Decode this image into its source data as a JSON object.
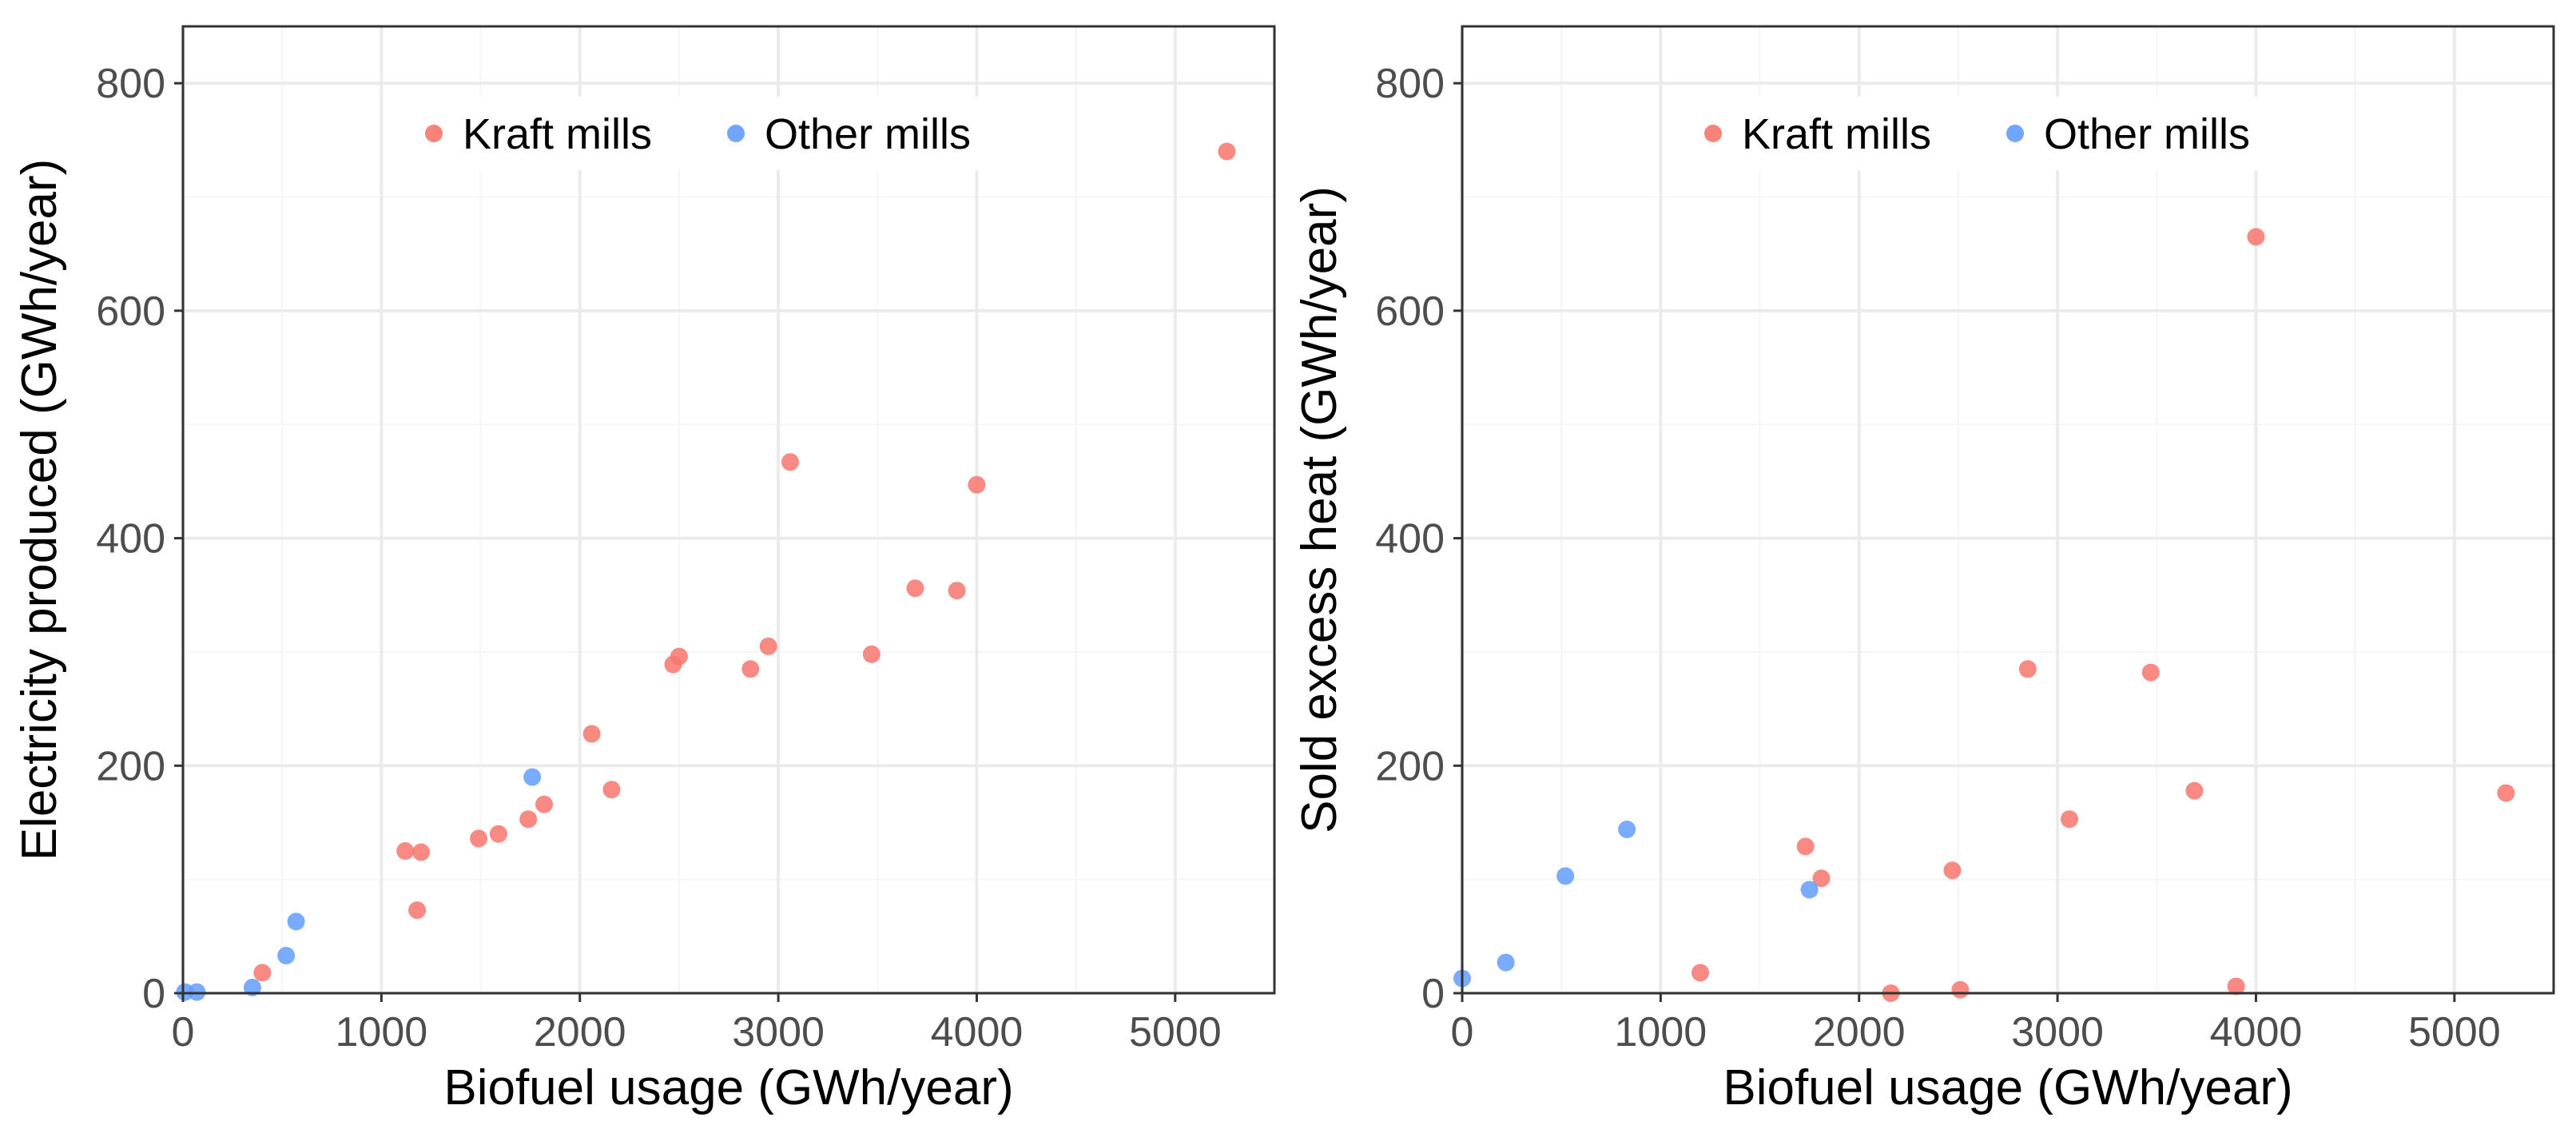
{
  "colors": {
    "kraft": "#F8766D",
    "other": "#619CFF",
    "grid_major": "#EBEBEB",
    "grid_minor": "#F5F5F5",
    "panel_border": "#333333",
    "tick_label": "#4D4D4D",
    "axis_title": "#000000"
  },
  "chart_data": [
    {
      "type": "scatter",
      "xlabel": "Biofuel usage (GWh/year)",
      "ylabel": "Electricity produced (GWh/year)",
      "xlim": [
        0,
        5500
      ],
      "ylim": [
        0,
        850
      ],
      "xticks": [
        0,
        1000,
        2000,
        3000,
        4000,
        5000
      ],
      "yticks": [
        0,
        200,
        400,
        600,
        800
      ],
      "xtick_labels": [
        "0",
        "1000",
        "2000",
        "3000",
        "4000",
        "5000"
      ],
      "ytick_labels": [
        "0",
        "200",
        "400",
        "600",
        "800"
      ],
      "grid": true,
      "legend": {
        "position": "top",
        "entries": [
          "Kraft mills",
          "Other mills"
        ]
      },
      "series": [
        {
          "name": "Kraft mills",
          "color_key": "kraft",
          "points": [
            [
              400,
              18
            ],
            [
              1120,
              125
            ],
            [
              1180,
              73
            ],
            [
              1200,
              124
            ],
            [
              1490,
              136
            ],
            [
              1590,
              140
            ],
            [
              1740,
              153
            ],
            [
              1820,
              166
            ],
            [
              2060,
              228
            ],
            [
              2160,
              179
            ],
            [
              2470,
              289
            ],
            [
              2500,
              296
            ],
            [
              2860,
              285
            ],
            [
              2950,
              305
            ],
            [
              3060,
              467
            ],
            [
              3470,
              298
            ],
            [
              3690,
              356
            ],
            [
              3900,
              354
            ],
            [
              4000,
              447
            ],
            [
              5260,
              740
            ]
          ]
        },
        {
          "name": "Other mills",
          "color_key": "other",
          "points": [
            [
              10,
              1
            ],
            [
              70,
              1
            ],
            [
              350,
              5
            ],
            [
              520,
              33
            ],
            [
              570,
              63
            ],
            [
              1760,
              190
            ]
          ]
        }
      ]
    },
    {
      "type": "scatter",
      "xlabel": "Biofuel usage (GWh/year)",
      "ylabel": "Sold excess heat (GWh/year)",
      "xlim": [
        0,
        5500
      ],
      "ylim": [
        0,
        850
      ],
      "xticks": [
        0,
        1000,
        2000,
        3000,
        4000,
        5000
      ],
      "yticks": [
        0,
        200,
        400,
        600,
        800
      ],
      "xtick_labels": [
        "0",
        "1000",
        "2000",
        "3000",
        "4000",
        "5000"
      ],
      "ytick_labels": [
        "0",
        "200",
        "400",
        "600",
        "800"
      ],
      "grid": true,
      "legend": {
        "position": "top",
        "entries": [
          "Kraft mills",
          "Other mills"
        ]
      },
      "series": [
        {
          "name": "Kraft mills",
          "color_key": "kraft",
          "points": [
            [
              1200,
              18
            ],
            [
              1730,
              129
            ],
            [
              1810,
              101
            ],
            [
              2160,
              0
            ],
            [
              2470,
              108
            ],
            [
              2510,
              3
            ],
            [
              2850,
              285
            ],
            [
              3060,
              153
            ],
            [
              3470,
              282
            ],
            [
              3690,
              178
            ],
            [
              3900,
              6
            ],
            [
              4000,
              665
            ],
            [
              5260,
              176
            ]
          ]
        },
        {
          "name": "Other mills",
          "color_key": "other",
          "points": [
            [
              0,
              13
            ],
            [
              220,
              27
            ],
            [
              520,
              103
            ],
            [
              830,
              144
            ],
            [
              1750,
              91
            ]
          ]
        }
      ]
    }
  ]
}
